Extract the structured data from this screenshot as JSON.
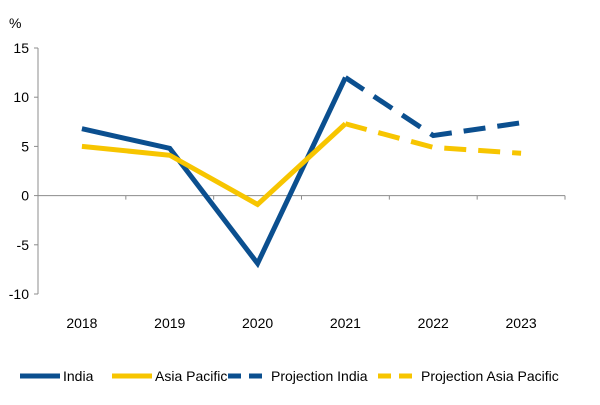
{
  "chart_data": {
    "type": "line",
    "title": "",
    "xlabel": "",
    "ylabel": "%",
    "ylim": [
      -10,
      15
    ],
    "yticks": [
      15,
      10,
      5,
      0,
      -5,
      -10
    ],
    "categories": [
      "2018",
      "2019",
      "2020",
      "2021",
      "2022",
      "2023"
    ],
    "series": [
      {
        "name": "India",
        "color": "#0b4f8f",
        "style": "solid",
        "values": [
          6.8,
          4.8,
          -6.9,
          12.0,
          null,
          null
        ]
      },
      {
        "name": "Asia Pacific",
        "color": "#f7c500",
        "style": "solid",
        "values": [
          5.0,
          4.1,
          -0.9,
          7.3,
          null,
          null
        ]
      },
      {
        "name": "Projection India",
        "color": "#0b4f8f",
        "style": "dashed",
        "values": [
          null,
          null,
          null,
          12.0,
          6.1,
          7.4
        ]
      },
      {
        "name": "Projection Asia Pacific",
        "color": "#f7c500",
        "style": "dashed",
        "values": [
          null,
          null,
          null,
          7.3,
          4.9,
          4.3
        ]
      }
    ],
    "legend_position": "bottom"
  }
}
